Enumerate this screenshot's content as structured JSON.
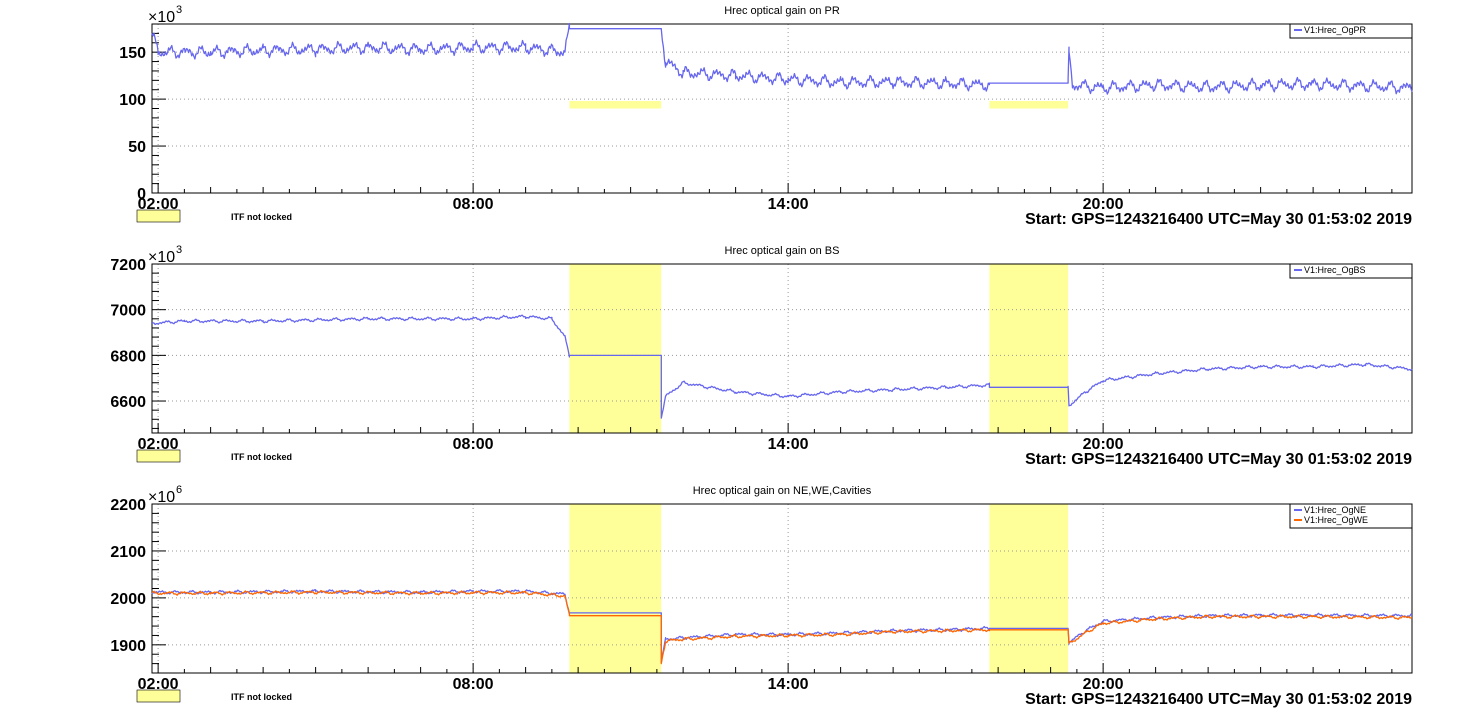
{
  "start_label": "Start: GPS=1243216400 UTC=May 30 01:53:02 2019",
  "itf_label": "ITF not locked",
  "colors": {
    "primary": "#6666ee",
    "secondary": "#ff6600",
    "unlocked": "#ffff99",
    "grid": "#9a9a9a"
  },
  "chart_data": [
    {
      "type": "line",
      "title": "Hrec optical gain on PR",
      "x_tick_labels": [
        "02:00",
        "08:00",
        "14:00",
        "20:00"
      ],
      "y_tick_labels": [
        "0",
        "50",
        "100",
        "150"
      ],
      "multiplier_base": "×10",
      "multiplier_exp": "3",
      "ylim": [
        0,
        180000
      ],
      "grid": true,
      "legend_position": "top-right",
      "unlocked_style": "band",
      "unlocked_intervals": [
        [
          "09:50",
          "11:35"
        ],
        [
          "17:50",
          "19:20"
        ]
      ],
      "series": [
        {
          "name": "V1:Hrec_OgPR",
          "color": "#6666ee",
          "points": [
            [
              "01:53",
              170000
            ],
            [
              "02:00",
              150000
            ],
            [
              "03:00",
              150000
            ],
            [
              "04:00",
              152000
            ],
            [
              "05:00",
              153000
            ],
            [
              "06:00",
              155000
            ],
            [
              "07:00",
              153000
            ],
            [
              "08:00",
              155000
            ],
            [
              "09:00",
              155000
            ],
            [
              "09:45",
              150000
            ],
            [
              "09:50",
              175000
            ],
            [
              "11:35",
              175000
            ],
            [
              "11:40",
              140000
            ],
            [
              "12:00",
              128000
            ],
            [
              "13:00",
              125000
            ],
            [
              "14:00",
              121000
            ],
            [
              "15:00",
              118000
            ],
            [
              "16:00",
              118000
            ],
            [
              "17:00",
              117000
            ],
            [
              "17:50",
              115000
            ],
            [
              "17:50",
              117000
            ],
            [
              "19:20",
              117000
            ],
            [
              "19:21",
              148000
            ],
            [
              "19:25",
              115000
            ],
            [
              "20:00",
              112000
            ],
            [
              "21:00",
              115000
            ],
            [
              "22:00",
              113000
            ],
            [
              "23:00",
              115000
            ],
            [
              "24:00",
              116000
            ],
            [
              "25:53",
              112000
            ]
          ]
        }
      ]
    },
    {
      "type": "line",
      "title": "Hrec optical gain on BS",
      "x_tick_labels": [
        "02:00",
        "08:00",
        "14:00",
        "20:00"
      ],
      "y_tick_labels": [
        "6600",
        "6800",
        "7000",
        "7200"
      ],
      "multiplier_base": "×10",
      "multiplier_exp": "3",
      "ylim": [
        6460000,
        7200000
      ],
      "grid": true,
      "legend_position": "top-right",
      "unlocked_style": "full",
      "unlocked_intervals": [
        [
          "09:50",
          "11:35"
        ],
        [
          "17:50",
          "19:20"
        ]
      ],
      "series": [
        {
          "name": "V1:Hrec_OgBS",
          "color": "#6666ee",
          "points": [
            [
              "01:53",
              6940000
            ],
            [
              "02:30",
              6950000
            ],
            [
              "04:00",
              6950000
            ],
            [
              "06:00",
              6960000
            ],
            [
              "08:00",
              6960000
            ],
            [
              "09:00",
              6970000
            ],
            [
              "09:30",
              6960000
            ],
            [
              "09:45",
              6880000
            ],
            [
              "09:50",
              6800000
            ],
            [
              "11:35",
              6800000
            ],
            [
              "11:35",
              6530000
            ],
            [
              "11:40",
              6620000
            ],
            [
              "12:00",
              6680000
            ],
            [
              "13:00",
              6640000
            ],
            [
              "14:00",
              6620000
            ],
            [
              "15:00",
              6640000
            ],
            [
              "16:00",
              6650000
            ],
            [
              "17:00",
              6660000
            ],
            [
              "17:50",
              6670000
            ],
            [
              "17:50",
              6660000
            ],
            [
              "19:20",
              6660000
            ],
            [
              "19:21",
              6580000
            ],
            [
              "19:40",
              6640000
            ],
            [
              "20:00",
              6690000
            ],
            [
              "21:00",
              6720000
            ],
            [
              "22:00",
              6740000
            ],
            [
              "23:00",
              6750000
            ],
            [
              "24:00",
              6750000
            ],
            [
              "25:00",
              6760000
            ],
            [
              "25:53",
              6740000
            ]
          ]
        }
      ]
    },
    {
      "type": "line",
      "title": "Hrec optical gain on NE,WE,Cavities",
      "x_tick_labels": [
        "02:00",
        "08:00",
        "14:00",
        "20:00"
      ],
      "y_tick_labels": [
        "1900",
        "2000",
        "2100",
        "2200"
      ],
      "multiplier_base": "×10",
      "multiplier_exp": "6",
      "ylim": [
        1840000000,
        2200000000
      ],
      "grid": true,
      "legend_position": "top-right",
      "unlocked_style": "full",
      "unlocked_intervals": [
        [
          "09:50",
          "11:35"
        ],
        [
          "17:50",
          "19:20"
        ]
      ],
      "series": [
        {
          "name": "V1:Hrec_OgNE",
          "color": "#6666ee",
          "points": [
            [
              "01:53",
              2012000000
            ],
            [
              "03:00",
              2012000000
            ],
            [
              "05:00",
              2014000000
            ],
            [
              "07:00",
              2012000000
            ],
            [
              "08:00",
              2014000000
            ],
            [
              "09:00",
              2014000000
            ],
            [
              "09:45",
              2008000000
            ],
            [
              "09:50",
              1968000000
            ],
            [
              "11:35",
              1968000000
            ],
            [
              "11:35",
              1862000000
            ],
            [
              "11:40",
              1912000000
            ],
            [
              "12:00",
              1915000000
            ],
            [
              "13:00",
              1922000000
            ],
            [
              "14:00",
              1922000000
            ],
            [
              "15:00",
              1925000000
            ],
            [
              "16:00",
              1930000000
            ],
            [
              "17:00",
              1932000000
            ],
            [
              "17:50",
              1935000000
            ],
            [
              "19:20",
              1935000000
            ],
            [
              "19:21",
              1905000000
            ],
            [
              "19:40",
              1930000000
            ],
            [
              "20:00",
              1950000000
            ],
            [
              "21:00",
              1958000000
            ],
            [
              "22:00",
              1962000000
            ],
            [
              "23:00",
              1963000000
            ],
            [
              "24:00",
              1963000000
            ],
            [
              "25:53",
              1962000000
            ]
          ]
        },
        {
          "name": "V1:Hrec_OgWE",
          "color": "#ff6600",
          "points": [
            [
              "01:53",
              2010000000
            ],
            [
              "03:00",
              2010000000
            ],
            [
              "05:00",
              2012000000
            ],
            [
              "07:00",
              2010000000
            ],
            [
              "08:00",
              2011000000
            ],
            [
              "09:00",
              2011000000
            ],
            [
              "09:45",
              2004000000
            ],
            [
              "09:50",
              1962000000
            ],
            [
              "11:35",
              1962000000
            ],
            [
              "11:35",
              1860000000
            ],
            [
              "11:40",
              1908000000
            ],
            [
              "12:00",
              1912000000
            ],
            [
              "13:00",
              1918000000
            ],
            [
              "14:00",
              1920000000
            ],
            [
              "15:00",
              1922000000
            ],
            [
              "16:00",
              1928000000
            ],
            [
              "17:00",
              1930000000
            ],
            [
              "17:50",
              1932000000
            ],
            [
              "19:20",
              1932000000
            ],
            [
              "19:21",
              1902000000
            ],
            [
              "19:40",
              1926000000
            ],
            [
              "20:00",
              1946000000
            ],
            [
              "21:00",
              1955000000
            ],
            [
              "22:00",
              1960000000
            ],
            [
              "23:00",
              1960000000
            ],
            [
              "24:00",
              1960000000
            ],
            [
              "25:53",
              1958000000
            ]
          ]
        }
      ]
    }
  ]
}
